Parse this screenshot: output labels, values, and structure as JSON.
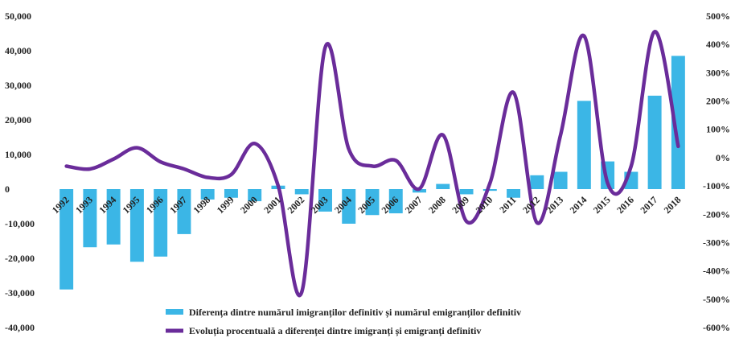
{
  "chart_data": {
    "type": "bar",
    "title": "",
    "xlabel": "",
    "ylabel": "",
    "categories": [
      "1992",
      "1993",
      "1994",
      "1995",
      "1996",
      "1997",
      "1998",
      "1999",
      "2000",
      "2001",
      "2002",
      "2003",
      "2004",
      "2005",
      "2006",
      "2007",
      "2008",
      "2009",
      "2010",
      "2011",
      "2012",
      "2013",
      "2014",
      "2015",
      "2016",
      "2017",
      "2018"
    ],
    "series": [
      {
        "name": "Diferența dintre numărul imigranților definitiv și numărul emigranților definitiv",
        "type": "bar",
        "axis": "left",
        "color": "#3bb6e6",
        "values": [
          -29000,
          -16800,
          -16000,
          -21000,
          -19500,
          -13000,
          -3000,
          -2500,
          -3500,
          1000,
          -1500,
          -6500,
          -10000,
          -7500,
          -7000,
          -1000,
          1500,
          -1500,
          -500,
          -2500,
          4000,
          5000,
          25500,
          8000,
          5000,
          27000,
          38500
        ]
      },
      {
        "name": "Evoluția procentuală a diferenței dintre imigranți și emigranți definitiv",
        "type": "line",
        "axis": "right",
        "color": "#6a2c9a",
        "values": [
          -30,
          -40,
          -5,
          35,
          -15,
          -40,
          -70,
          -60,
          50,
          -100,
          -475,
          390,
          30,
          -30,
          -10,
          -110,
          80,
          -225,
          -90,
          230,
          -230,
          80,
          430,
          -90,
          -30,
          445,
          40
        ]
      }
    ],
    "ylim": [
      -40000,
      50000
    ],
    "y_ticks": [
      "50,000",
      "40,000",
      "30,000",
      "20,000",
      "10,000",
      "0",
      "-10,000",
      "-20,000",
      "-30,000",
      "-40,000"
    ],
    "y2lim": [
      -600,
      500
    ],
    "y2_ticks": [
      "500%",
      "400%",
      "300%",
      "200%",
      "100%",
      "0%",
      "-100%",
      "-200%",
      "-300%",
      "-400%",
      "-500%",
      "-600%"
    ],
    "grid": false,
    "legend_position": "bottom"
  }
}
